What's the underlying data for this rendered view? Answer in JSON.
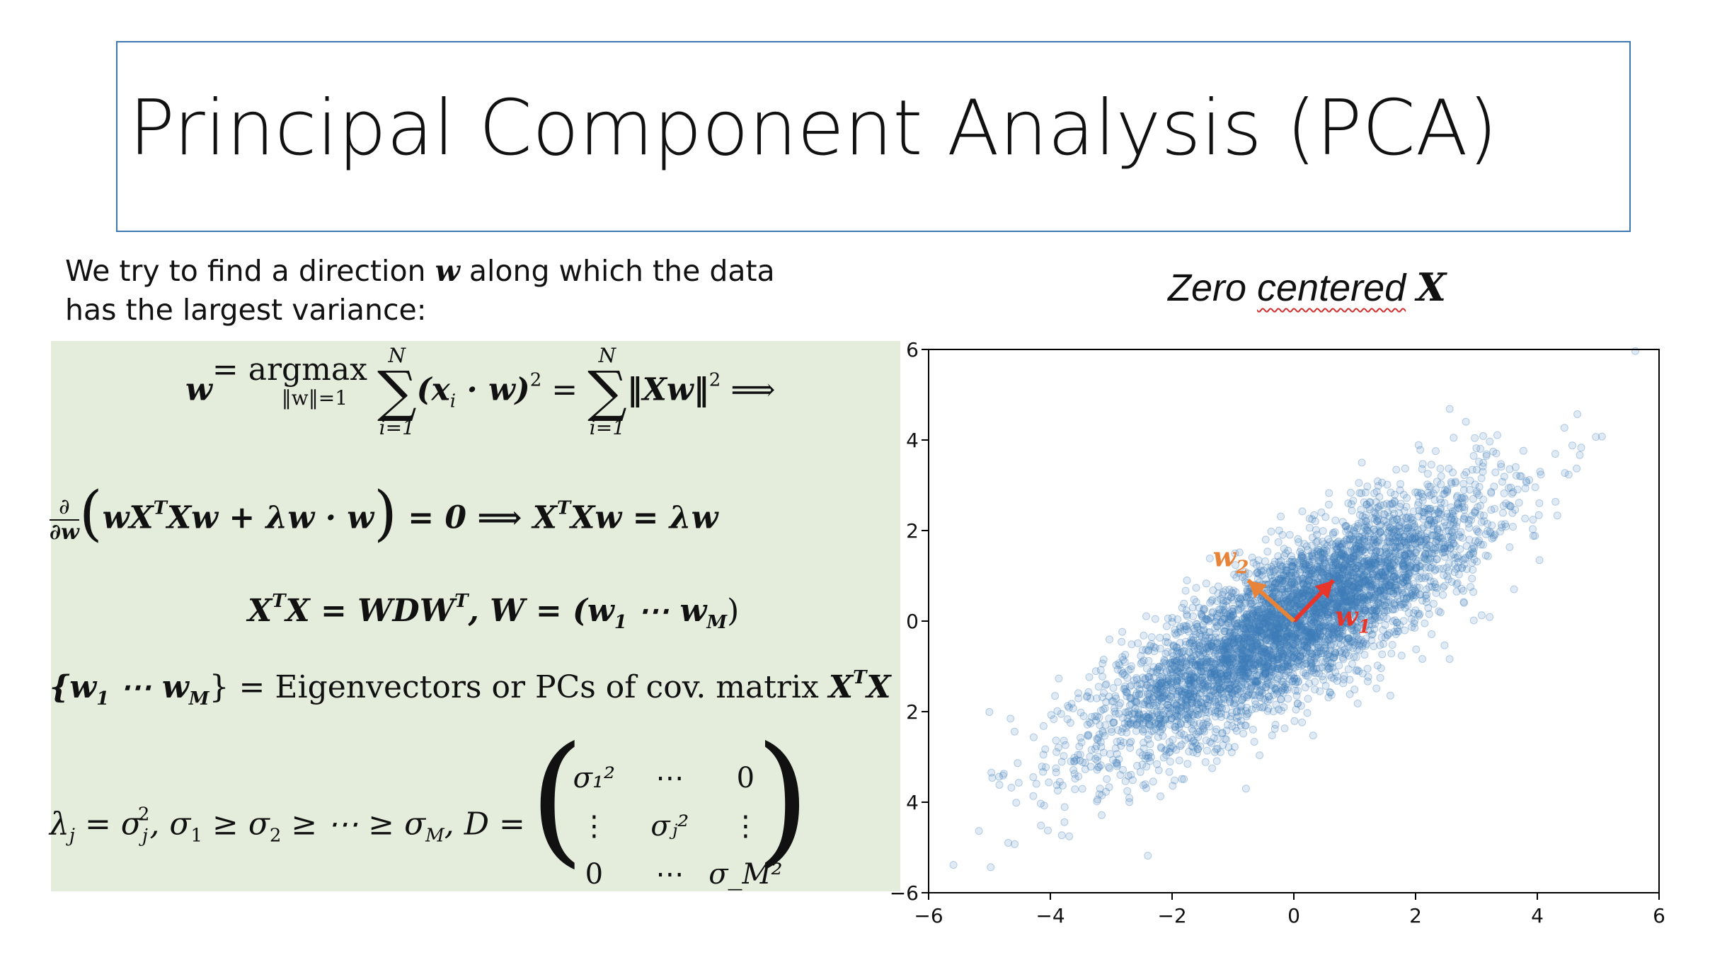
{
  "slide": {
    "title": "Principal Component Analysis (PCA)",
    "intro_before": "We try to find a direction ",
    "intro_var": "w",
    "intro_after": " along which the data has the largest variance:",
    "plot_title_word1": "Zero ",
    "plot_title_word2": "centered",
    "plot_title_var": "X"
  },
  "equations": {
    "eq1": {
      "lhs": "w",
      "eq": " = argmax",
      "argmax_sub": "‖w‖=1",
      "sum_top": "N",
      "sum_bottom": "i=1",
      "term1": "(x",
      "term1_sub": "i",
      "term1_rest": " · w)",
      "term1_sup": "2",
      "eq2": " = ",
      "term2": "‖Xw‖",
      "term2_sup": "2",
      "implies": " ⟹"
    },
    "eq2": {
      "frac_num": "∂",
      "frac_den": "∂w",
      "body": "wX",
      "body_sup": "T",
      "body2": "Xw + λw · w",
      "rhs": " = 0 ⟹ X",
      "rhs_sup": "T",
      "rhs2": "Xw = λw"
    },
    "eq3": {
      "a": "X",
      "a_sup": "T",
      "b": "X = WDW",
      "b_sup": "T",
      "c": ", W = (w",
      "c_sub": "1",
      "d": " ⋯ w",
      "d_sub": "M",
      "e": ")"
    },
    "eq4": {
      "a": "{w",
      "a_sub": "1",
      "b": " ⋯ w",
      "b_sub": "M",
      "c": "}",
      "d": " = Eigenvectors or PCs of cov. matrix ",
      "e": "X",
      "e_sup": "T",
      "f": "X"
    },
    "eq5": {
      "lambda": "λ",
      "lambda_sub": "j",
      "eq": " = σ",
      "sigma_sub": "j",
      "sigma_sup": "2",
      "chain": ",  σ",
      "s1": "1",
      "ge1": " ≥ σ",
      "s2": "2",
      "ge2": " ≥ ⋯ ≥ σ",
      "sM": "M",
      "dlabel": ", D = "
    },
    "matrix": [
      [
        "σ₁²",
        "⋯",
        "0"
      ],
      [
        "⋮",
        "σⱼ²",
        "⋮"
      ],
      [
        "0",
        "⋯",
        "σ_M²"
      ]
    ]
  },
  "chart_data": {
    "type": "scatter",
    "title": "",
    "xlabel": "",
    "ylabel": "",
    "xlim": [
      -6,
      6
    ],
    "ylim": [
      -6,
      6
    ],
    "xticks": [
      "−6",
      "−4",
      "−2",
      "0",
      "2",
      "4",
      "6"
    ],
    "yticks": [
      "6",
      "4",
      "2",
      "0",
      "2",
      "4",
      "−6"
    ],
    "grid": false,
    "point_color": "#3f7fb8",
    "point_count": 5000,
    "distribution": {
      "mean": [
        0,
        0
      ],
      "cov": [
        [
          2.4,
          1.8
        ],
        [
          1.8,
          2.0
        ]
      ]
    },
    "vectors": [
      {
        "name": "w1",
        "label_base": "w",
        "label_sub": "1",
        "color": "#e8352a",
        "from": [
          0,
          0
        ],
        "to": [
          0.65,
          0.9
        ]
      },
      {
        "name": "w2",
        "label_base": "w",
        "label_sub": "2",
        "color": "#e8833a",
        "from": [
          0,
          0
        ],
        "to": [
          -0.75,
          0.9
        ]
      }
    ]
  }
}
